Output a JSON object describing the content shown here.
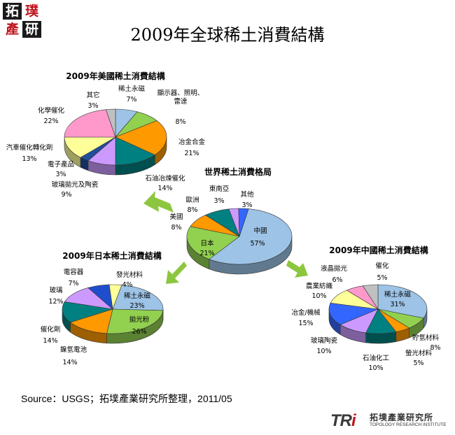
{
  "logo": {
    "chars": [
      "拓",
      "璞",
      "產",
      "研"
    ]
  },
  "title": "2009年全球稀土消費結構",
  "source": "Source：USGS；拓墣產業研究所整理，2011/05",
  "footer_logo": {
    "mark_a": "TR",
    "mark_b": "i",
    "cn": "拓墣產業研究所",
    "en": "TOPOLOGY RESEARCH INSTITUTE"
  },
  "chart_data": [
    {
      "type": "pie",
      "title": "2009年美國稀土消費結構",
      "slices": [
        {
          "label": "稀土永磁",
          "value": 7,
          "pct": "7%",
          "color": "#9dc3e6"
        },
        {
          "label": "顯示器、照明、雷達",
          "label_lines": [
            "顯示器、照明、",
            "雷達"
          ],
          "value": 8,
          "pct": "8%",
          "color": "#92d050"
        },
        {
          "label": "冶金合金",
          "value": 21,
          "pct": "21%",
          "color": "#ff9900"
        },
        {
          "label": "石油冶煉催化",
          "value": 14,
          "pct": "14%",
          "color": "#008080"
        },
        {
          "label": "玻璃拋光及陶瓷",
          "value": 9,
          "pct": "9%",
          "color": "#cc99ff"
        },
        {
          "label": "電子產品",
          "value": 3,
          "pct": "3%",
          "color": "#1f4e9c"
        },
        {
          "label": "汽車催化轉化劑",
          "value": 13,
          "pct": "13%",
          "color": "#ffff99"
        },
        {
          "label": "化學催化",
          "value": 22,
          "pct": "22%",
          "color": "#ff99cc"
        },
        {
          "label": "其它",
          "value": 3,
          "pct": "3%",
          "color": "#c0c0c0"
        }
      ]
    },
    {
      "type": "pie",
      "title": "世界稀土消費格局",
      "slices": [
        {
          "label": "中國",
          "value": 57,
          "pct": "57%",
          "color": "#9dc3e6"
        },
        {
          "label": "日本",
          "value": 21,
          "pct": "21%",
          "color": "#92d050"
        },
        {
          "label": "美國",
          "value": 8,
          "pct": "8%",
          "color": "#ff9900"
        },
        {
          "label": "歐洲",
          "value": 8,
          "pct": "8%",
          "color": "#008080"
        },
        {
          "label": "東南亞",
          "value": 3,
          "pct": "3%",
          "color": "#cc99ff"
        },
        {
          "label": "其他",
          "value": 3,
          "pct": "3%",
          "color": "#3366ff"
        }
      ]
    },
    {
      "type": "pie",
      "title": "2009年日本稀土消費結構",
      "slices": [
        {
          "label": "發光材料",
          "value": 4,
          "pct": "4%",
          "color": "#ffff99"
        },
        {
          "label": "稀土永磁",
          "value": 23,
          "pct": "23%",
          "color": "#9dc3e6"
        },
        {
          "label": "拋光粉",
          "value": 26,
          "pct": "26%",
          "color": "#92d050"
        },
        {
          "label": "鎳氫電池",
          "value": 14,
          "pct": "14%",
          "color": "#ff9900"
        },
        {
          "label": "催化劑",
          "value": 14,
          "pct": "14%",
          "color": "#008080"
        },
        {
          "label": "玻璃",
          "value": 12,
          "pct": "12%",
          "color": "#cc99ff"
        },
        {
          "label": "電容器",
          "value": 7,
          "pct": "7%",
          "color": "#1f4ecc"
        }
      ]
    },
    {
      "type": "pie",
      "title": "2009年中國稀土消費結構",
      "slices": [
        {
          "label": "稀土永磁",
          "value": 31,
          "pct": "31%",
          "color": "#9dc3e6"
        },
        {
          "label": "貯氫材料",
          "value": 8,
          "pct": "8%",
          "color": "#92d050"
        },
        {
          "label": "螢光材料",
          "value": 5,
          "pct": "5%",
          "color": "#ff9900"
        },
        {
          "label": "石油化工",
          "value": 10,
          "pct": "10%",
          "color": "#008080"
        },
        {
          "label": "玻璃陶瓷",
          "value": 10,
          "pct": "10%",
          "color": "#cc99ff"
        },
        {
          "label": "冶金/機械",
          "value": 15,
          "pct": "15%",
          "color": "#3366ff"
        },
        {
          "label": "農業紡織",
          "value": 10,
          "pct": "10%",
          "color": "#ffff99"
        },
        {
          "label": "液晶拋光",
          "value": 6,
          "pct": "6%",
          "color": "#ff99cc"
        },
        {
          "label": "催化",
          "value": 5,
          "pct": "5%",
          "color": "#c0c0c0"
        }
      ]
    }
  ]
}
